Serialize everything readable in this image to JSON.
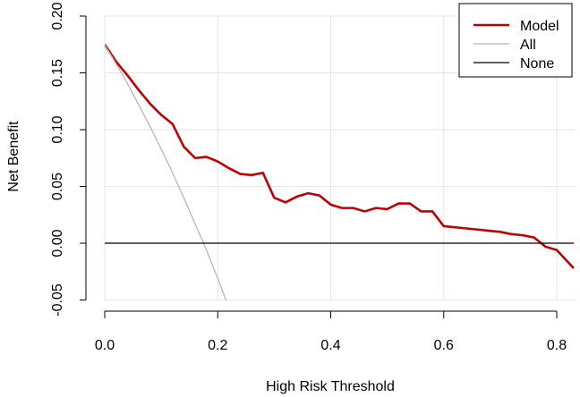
{
  "chart_data": {
    "type": "line",
    "xlabel": "High Risk Threshold",
    "ylabel": "Net Benefit",
    "xlim": [
      0,
      0.83
    ],
    "ylim": [
      -0.06,
      0.2
    ],
    "x_ticks": [
      0.0,
      0.2,
      0.4,
      0.6,
      0.8
    ],
    "x_tick_labels": [
      "0.0",
      "0.2",
      "0.4",
      "0.6",
      "0.8"
    ],
    "y_ticks": [
      -0.05,
      0.0,
      0.05,
      0.1,
      0.15,
      0.2
    ],
    "y_tick_labels": [
      "-0.05",
      "0.00",
      "0.05",
      "0.10",
      "0.15",
      "0.20"
    ],
    "grid": true,
    "legend_position": "top-right",
    "colors": {
      "model": "#c00000",
      "all": "#b3b3b3",
      "none": "#000000",
      "grid": "#e6e6e6"
    },
    "series": [
      {
        "name": "Model",
        "color": "#c00000",
        "x": [
          0.0,
          0.02,
          0.04,
          0.06,
          0.08,
          0.1,
          0.12,
          0.14,
          0.16,
          0.18,
          0.2,
          0.22,
          0.24,
          0.26,
          0.28,
          0.3,
          0.32,
          0.34,
          0.36,
          0.38,
          0.4,
          0.42,
          0.44,
          0.46,
          0.48,
          0.5,
          0.52,
          0.54,
          0.56,
          0.58,
          0.6,
          0.62,
          0.64,
          0.66,
          0.68,
          0.7,
          0.72,
          0.74,
          0.76,
          0.78,
          0.8,
          0.83
        ],
        "values": [
          0.175,
          0.16,
          0.148,
          0.135,
          0.123,
          0.113,
          0.105,
          0.085,
          0.075,
          0.076,
          0.072,
          0.066,
          0.061,
          0.06,
          0.062,
          0.04,
          0.036,
          0.041,
          0.044,
          0.042,
          0.034,
          0.031,
          0.031,
          0.028,
          0.031,
          0.03,
          0.035,
          0.035,
          0.028,
          0.028,
          0.015,
          0.014,
          0.013,
          0.012,
          0.011,
          0.01,
          0.008,
          0.007,
          0.005,
          -0.003,
          -0.006,
          -0.022
        ]
      },
      {
        "name": "All",
        "color": "#b3b3b3",
        "x": [
          0.0,
          0.02,
          0.04,
          0.06,
          0.08,
          0.1,
          0.12,
          0.14,
          0.16,
          0.18,
          0.2,
          0.22
        ],
        "values": [
          0.175,
          0.158,
          0.141,
          0.122,
          0.103,
          0.083,
          0.062,
          0.04,
          0.017,
          -0.006,
          -0.031,
          -0.057
        ]
      },
      {
        "name": "None",
        "color": "#000000",
        "x": [
          0.0,
          0.83
        ],
        "values": [
          0.0,
          0.0
        ]
      }
    ]
  }
}
